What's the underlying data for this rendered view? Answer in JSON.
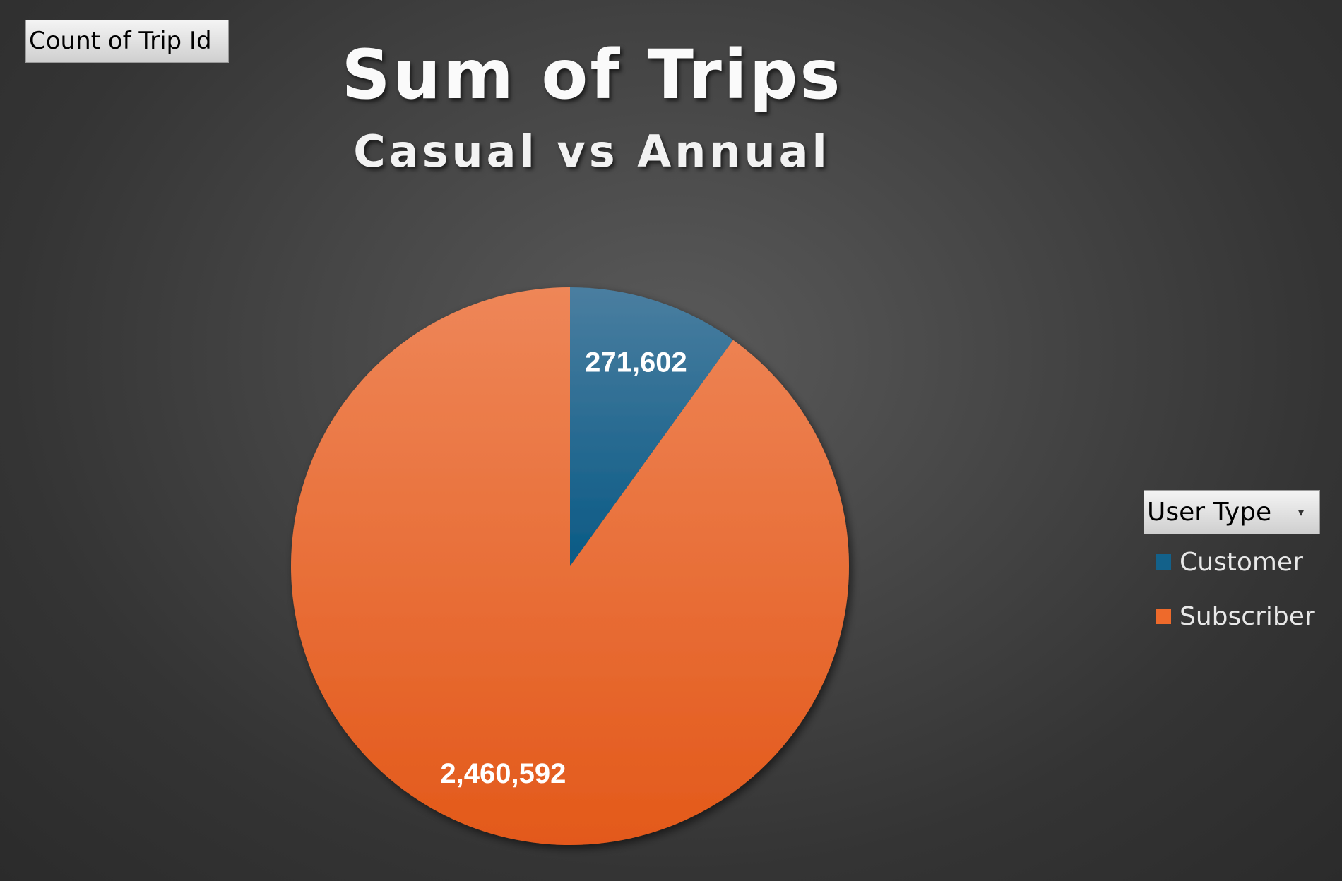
{
  "field_buttons": {
    "value_field": "Count of Trip Id",
    "legend_field": "User Type",
    "legend_dropdown_glyph": "▾"
  },
  "chart_data": {
    "type": "pie",
    "title": "Sum of Trips",
    "subtitle": "Casual vs Annual",
    "categories": [
      "Customer",
      "Subscriber"
    ],
    "values": [
      271602,
      2460592
    ],
    "data_labels": [
      "271,602",
      "2,460,592"
    ],
    "colors": [
      "#13618a",
      "#ee6a2b"
    ],
    "legend_placement": "right",
    "start_angle": "12 o'clock, clockwise"
  }
}
